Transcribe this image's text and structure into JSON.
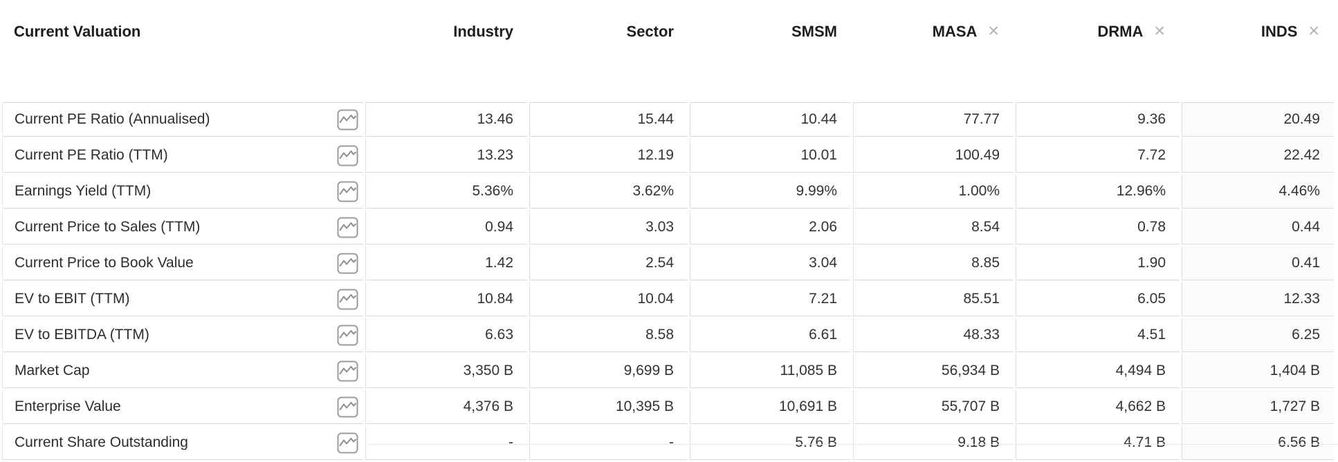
{
  "table": {
    "title": "Current Valuation",
    "close_icon": "✕",
    "row_chart_icon": "sparkline-chart",
    "columns": [
      {
        "key": "industry",
        "label": "Industry",
        "ticker": false,
        "closable": false
      },
      {
        "key": "sector",
        "label": "Sector",
        "ticker": false,
        "closable": false
      },
      {
        "key": "smsm",
        "label": "SMSM",
        "ticker": true,
        "closable": false
      },
      {
        "key": "masa",
        "label": "MASA",
        "ticker": true,
        "closable": true
      },
      {
        "key": "drma",
        "label": "DRMA",
        "ticker": true,
        "closable": true
      },
      {
        "key": "inds",
        "label": "INDS",
        "ticker": true,
        "closable": true
      }
    ],
    "rows": [
      {
        "label": "Current PE Ratio (Annualised)",
        "values": [
          "13.46",
          "15.44",
          "10.44",
          "77.77",
          "9.36",
          "20.49"
        ]
      },
      {
        "label": "Current PE Ratio (TTM)",
        "values": [
          "13.23",
          "12.19",
          "10.01",
          "100.49",
          "7.72",
          "22.42"
        ]
      },
      {
        "label": "Earnings Yield (TTM)",
        "values": [
          "5.36%",
          "3.62%",
          "9.99%",
          "1.00%",
          "12.96%",
          "4.46%"
        ]
      },
      {
        "label": "Current Price to Sales (TTM)",
        "values": [
          "0.94",
          "3.03",
          "2.06",
          "8.54",
          "0.78",
          "0.44"
        ]
      },
      {
        "label": "Current Price to Book Value",
        "values": [
          "1.42",
          "2.54",
          "3.04",
          "8.85",
          "1.90",
          "0.41"
        ]
      },
      {
        "label": "EV to EBIT (TTM)",
        "values": [
          "10.84",
          "10.04",
          "7.21",
          "85.51",
          "6.05",
          "12.33"
        ]
      },
      {
        "label": "EV to EBITDA (TTM)",
        "values": [
          "6.63",
          "8.58",
          "6.61",
          "48.33",
          "4.51",
          "6.25"
        ]
      },
      {
        "label": "Market Cap",
        "values": [
          "3,350 B",
          "9,699 B",
          "11,085 B",
          "56,934 B",
          "4,494 B",
          "1,404 B"
        ]
      },
      {
        "label": "Enterprise Value",
        "values": [
          "4,376 B",
          "10,395 B",
          "10,691 B",
          "55,707 B",
          "4,662 B",
          "1,727 B"
        ]
      },
      {
        "label": "Current Share Outstanding",
        "values": [
          "-",
          "-",
          "5.76 B",
          "9.18 B",
          "4.71 B",
          "6.56 B"
        ]
      }
    ],
    "colors": {
      "header_text": "#1d1d1f",
      "body_text": "#333333",
      "border": "#d9d9d9",
      "close_icon": "#b4b4b4",
      "chart_icon": "#8f8f8f"
    }
  }
}
